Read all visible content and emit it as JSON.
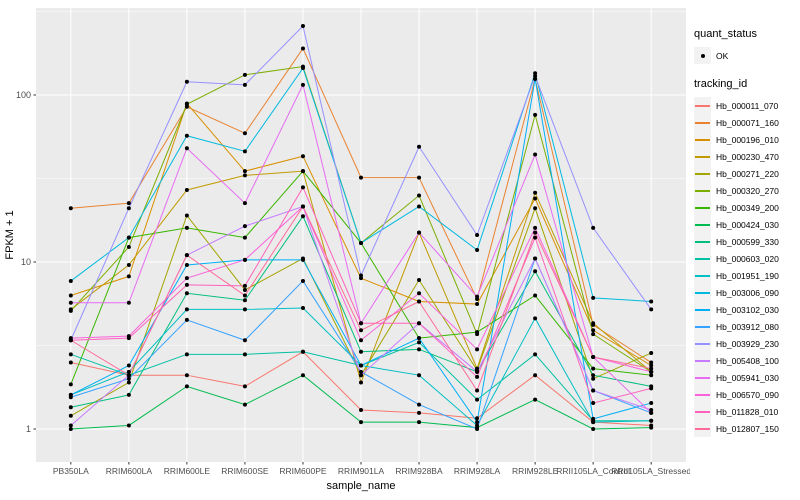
{
  "chart_data": {
    "type": "line",
    "title": "",
    "xlabel": "sample_name",
    "ylabel": "FPKM + 1",
    "y_scale": "log10",
    "y_ticks": [
      1,
      10,
      100
    ],
    "y_minor_ticks": [
      3.162,
      31.62,
      316.2
    ],
    "ylim": [
      0.63,
      333
    ],
    "grid": "on",
    "panel_bg": "#EBEBEB",
    "grid_color": "#FFFFFF",
    "tick_label_color": "#4D4D4D",
    "axis_title_color": "#000000",
    "point_color": "#000000",
    "legend_position": "right",
    "categories": [
      "PB350LA",
      "RRIM600LA",
      "RRIM600LE",
      "RRIM600SE",
      "RRIM600PE",
      "RRIM901LA",
      "RRIM928BA",
      "RRIM928LA",
      "RRIM928LE",
      "RRII105LA_Control",
      "RRII105LA_Stressed"
    ],
    "legend": {
      "quant_status_title": "quant_status",
      "ok_label": "OK",
      "tracking_title": "tracking_id"
    },
    "series": [
      {
        "name": "Hb_000011_070",
        "color": "#F8766D",
        "values": [
          2.5,
          2.1,
          2.1,
          1.8,
          2.9,
          1.3,
          1.25,
          1.16,
          2.1,
          1.1,
          1.05
        ]
      },
      {
        "name": "Hb_000071_160",
        "color": "#EA8331",
        "values": [
          21,
          22.5,
          85,
          59,
          190,
          32,
          32,
          6.0,
          125,
          4.2,
          2.5
        ]
      },
      {
        "name": "Hb_000196_010",
        "color": "#D89000",
        "values": [
          6.3,
          8.2,
          89,
          35,
          43,
          8.0,
          5.8,
          5.6,
          24,
          3.9,
          2.4
        ]
      },
      {
        "name": "Hb_000230_470",
        "color": "#C09B00",
        "values": [
          5.2,
          9.6,
          27,
          33,
          35,
          1.9,
          15,
          2.3,
          26,
          4.3,
          2.2
        ]
      },
      {
        "name": "Hb_000271_220",
        "color": "#A3A500",
        "values": [
          1.2,
          1.9,
          19,
          6.8,
          10.5,
          2.1,
          7.8,
          2.25,
          21,
          2.0,
          2.85
        ]
      },
      {
        "name": "Hb_000320_270",
        "color": "#7CAE00",
        "values": [
          5.1,
          12.3,
          88,
          132,
          148,
          13,
          25,
          3.7,
          76,
          3.7,
          2.2
        ]
      },
      {
        "name": "Hb_000349_200",
        "color": "#39B600",
        "values": [
          1.85,
          14,
          16,
          14,
          35,
          13,
          3.5,
          3.8,
          6.3,
          2.3,
          2.1
        ]
      },
      {
        "name": "Hb_000424_030",
        "color": "#00BB4E",
        "values": [
          1.0,
          1.05,
          1.8,
          1.4,
          2.1,
          1.1,
          1.1,
          1.02,
          1.5,
          1.0,
          1.02
        ]
      },
      {
        "name": "Hb_000599_330",
        "color": "#00BF7D",
        "values": [
          1.35,
          1.6,
          6.5,
          5.9,
          18.8,
          2.9,
          3.0,
          2.2,
          8.8,
          2.1,
          1.8
        ]
      },
      {
        "name": "Hb_000603_020",
        "color": "#00C1A3",
        "values": [
          2.8,
          2.1,
          2.8,
          2.8,
          2.9,
          2.4,
          3.3,
          1.5,
          2.8,
          1.12,
          1.12
        ]
      },
      {
        "name": "Hb_001951_190",
        "color": "#00BFC4",
        "values": [
          1.6,
          2.2,
          5.2,
          5.2,
          5.3,
          2.4,
          2.1,
          1.05,
          4.6,
          1.1,
          1.12
        ]
      },
      {
        "name": "Hb_003006_090",
        "color": "#00BAE0",
        "values": [
          7.7,
          14,
          57,
          46,
          145,
          13,
          21.5,
          11.8,
          135,
          6.1,
          5.8
        ]
      },
      {
        "name": "Hb_003102_030",
        "color": "#00B0F6",
        "values": [
          1.6,
          2.4,
          9.6,
          10.3,
          10.3,
          2.4,
          3.5,
          1.1,
          125,
          1.15,
          1.43
        ]
      },
      {
        "name": "Hb_003912_080",
        "color": "#35A2FF",
        "values": [
          1.55,
          2.0,
          4.5,
          3.4,
          7.7,
          2.2,
          1.4,
          1.0,
          10.5,
          1.7,
          1.25
        ]
      },
      {
        "name": "Hb_003929_230",
        "color": "#9590FF",
        "values": [
          3.4,
          21,
          120,
          115,
          259,
          8.3,
          49,
          14.5,
          130,
          16,
          5.2
        ]
      },
      {
        "name": "Hb_005408_100",
        "color": "#C77CFF",
        "values": [
          1.05,
          2.1,
          11,
          16.4,
          21.5,
          2.1,
          4.3,
          2.2,
          10.5,
          1.7,
          1.3
        ]
      },
      {
        "name": "Hb_005941_030",
        "color": "#E76BF3",
        "values": [
          5.7,
          5.7,
          48,
          22.5,
          115,
          4.3,
          15,
          6.2,
          44,
          2.7,
          1.25
        ]
      },
      {
        "name": "Hb_006570_090",
        "color": "#FA62DB",
        "values": [
          3.5,
          3.6,
          8.0,
          10.3,
          21.5,
          3.4,
          6.5,
          3.0,
          16,
          2.7,
          2.2
        ]
      },
      {
        "name": "Hb_011828_010",
        "color": "#FF62BC",
        "values": [
          3.4,
          3.5,
          7.3,
          7.2,
          28,
          4.3,
          4.3,
          2.05,
          14,
          1.43,
          1.75
        ]
      },
      {
        "name": "Hb_012807_150",
        "color": "#FF6A98",
        "values": [
          3.4,
          2.1,
          11,
          6.3,
          21.5,
          3.9,
          5.8,
          1.7,
          15,
          2.7,
          2.3
        ]
      }
    ]
  }
}
